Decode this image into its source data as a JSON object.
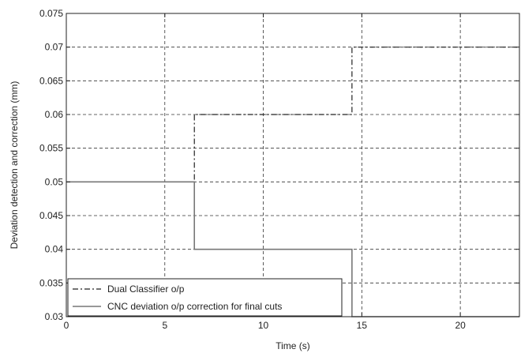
{
  "chart_data": {
    "type": "line",
    "title": "",
    "xlabel": "Time (s)",
    "ylabel": "Deviation detection and correction (mm)",
    "xlim": [
      0,
      23
    ],
    "ylim": [
      0.03,
      0.075
    ],
    "x_ticks": [
      0,
      5,
      10,
      15,
      20
    ],
    "x_tick_labels": [
      "0",
      "5",
      "10",
      "15",
      "20"
    ],
    "y_ticks": [
      0.03,
      0.035,
      0.04,
      0.045,
      0.05,
      0.055,
      0.06,
      0.065,
      0.07,
      0.075
    ],
    "y_tick_labels": [
      "0.03",
      "0.035",
      "0.04",
      "0.045",
      "0.05",
      "0.055",
      "0.06",
      "0.065",
      "0.07",
      "0.075"
    ],
    "grid": true,
    "legend_position": "bottom-left",
    "series": [
      {
        "name": "Dual Classifier o/p",
        "style": "dash-dot",
        "color": "#222222",
        "step": true,
        "x": [
          0,
          6.5,
          14.5,
          23
        ],
        "y": [
          0.05,
          0.06,
          0.07,
          0.07
        ]
      },
      {
        "name": "CNC deviation o/p correction for final cuts",
        "style": "solid",
        "color": "#777777",
        "step": true,
        "x": [
          0,
          6.5,
          14.5,
          23
        ],
        "y": [
          0.05,
          0.04,
          0.03,
          0.03
        ]
      }
    ]
  }
}
